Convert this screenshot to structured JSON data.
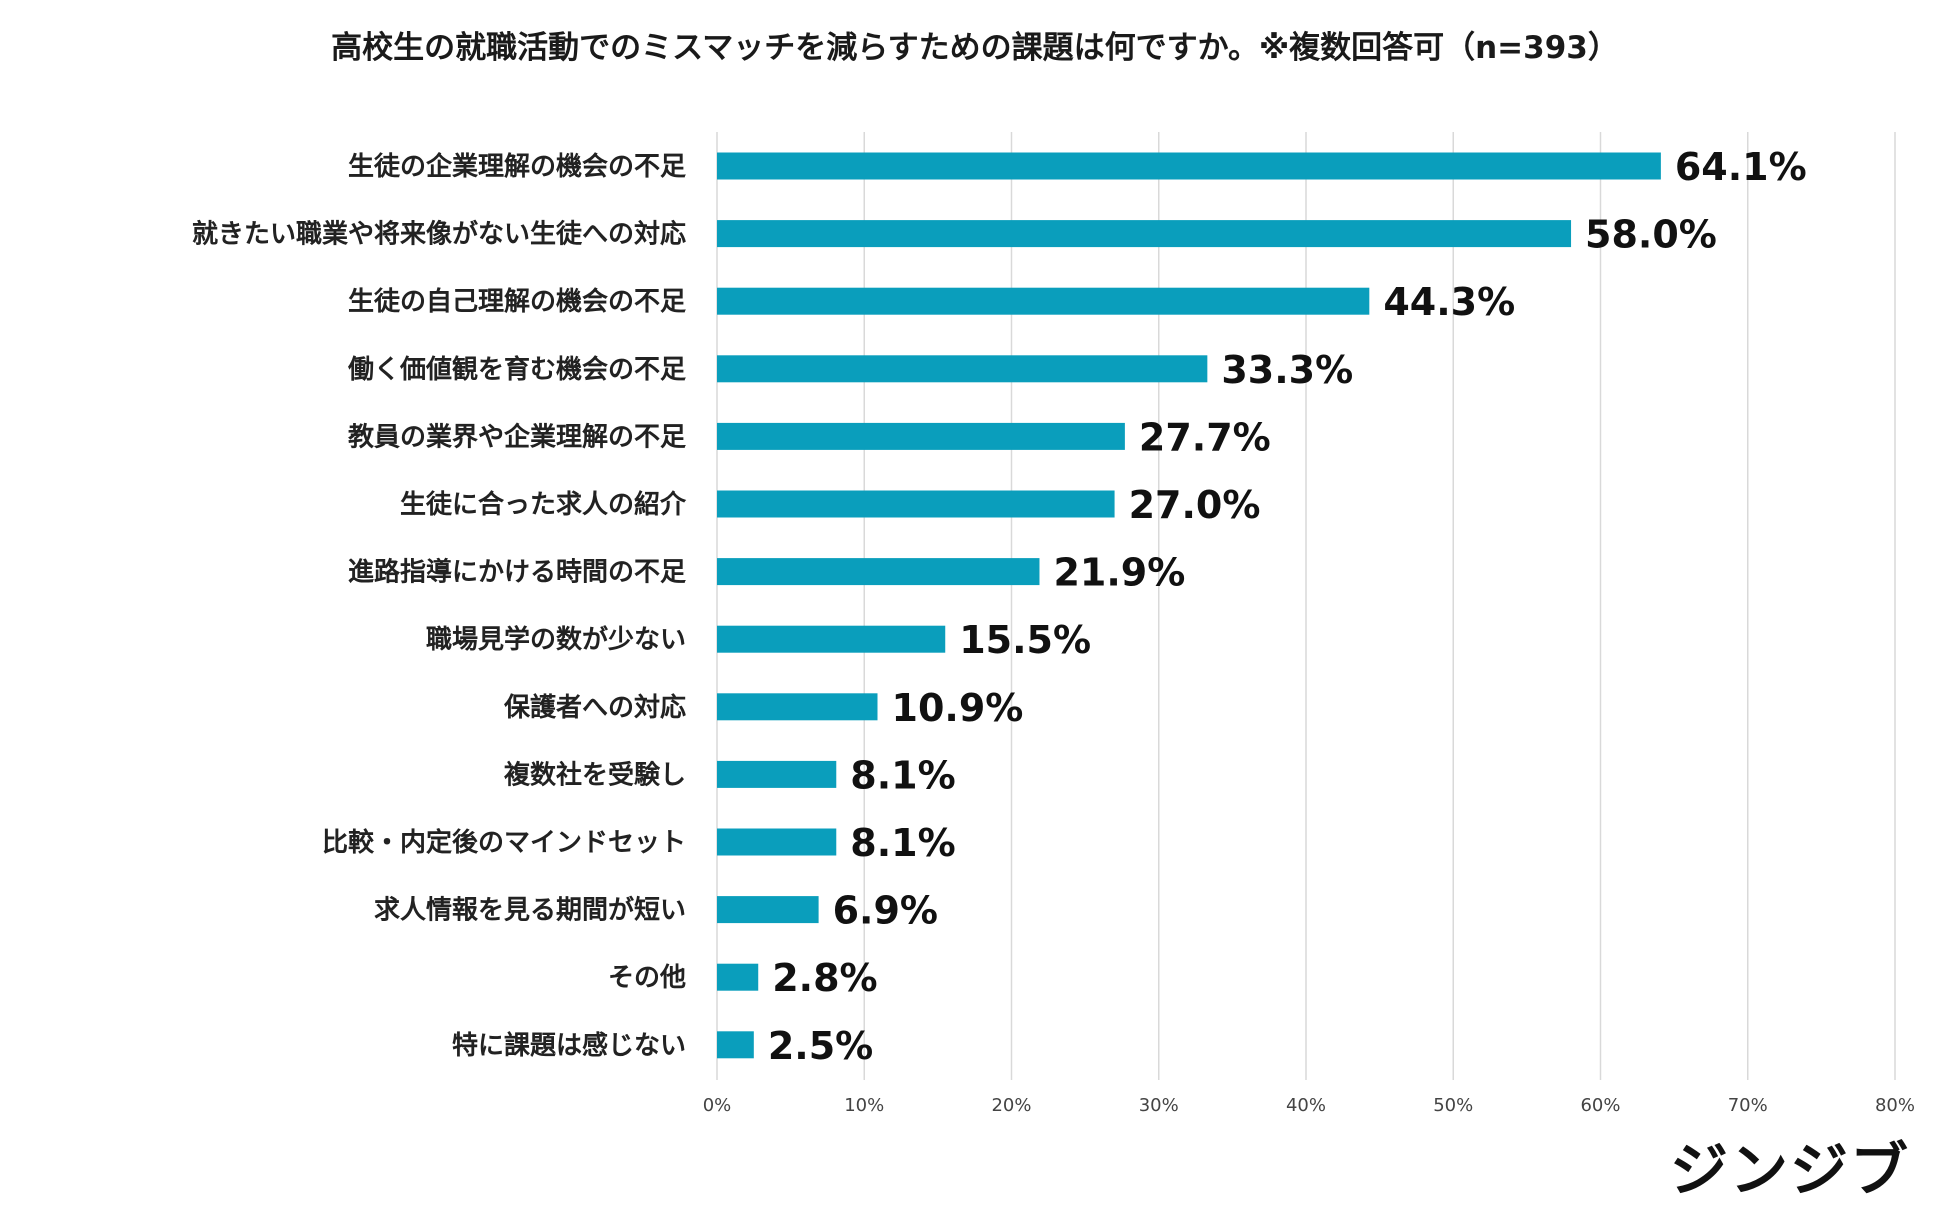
{
  "chart_data": {
    "type": "bar",
    "orientation": "horizontal",
    "title": "高校生の就職活動でのミスマッチを減らすための課題は何ですか。※複数回答可（n=393）",
    "xlabel": "",
    "ylabel": "",
    "xlim": [
      0,
      80
    ],
    "grid": true,
    "tick_step": 10,
    "tick_suffix": "%",
    "value_suffix": "%",
    "bar_color": "#0a9ebc",
    "categories": [
      "生徒の企業理解の機会の不足",
      "就きたい職業や将来像がない生徒への対応",
      "生徒の自己理解の機会の不足",
      "働く価値観を育む機会の不足",
      "教員の業界や企業理解の不足",
      "生徒に合った求人の紹介",
      "進路指導にかける時間の不足",
      "職場見学の数が少ない",
      "保護者への対応",
      "複数社を受験し",
      "比較・内定後のマインドセット",
      "求人情報を見る期間が短い",
      "その他",
      "特に課題は感じない"
    ],
    "values": [
      64.1,
      58.0,
      44.3,
      33.3,
      27.7,
      27.0,
      21.9,
      15.5,
      10.9,
      8.1,
      8.1,
      6.9,
      2.8,
      2.5
    ]
  },
  "logo": {
    "text": "ジンジブ"
  }
}
